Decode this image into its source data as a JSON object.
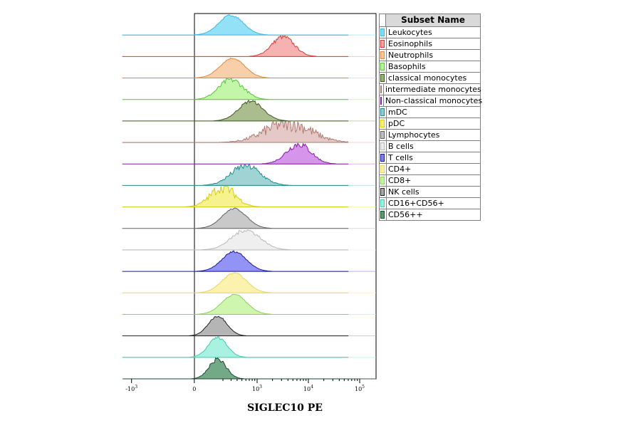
{
  "chart_data": {
    "type": "area",
    "xlabel": "SIGLEC10 PE",
    "x_scale": "logicle",
    "x_ticks": [
      {
        "label_base": "-10",
        "label_exp": "3",
        "value": -1000
      },
      {
        "label_base": "0",
        "label_exp": "",
        "value": 0
      },
      {
        "label_base": "10",
        "label_exp": "3",
        "value": 1000
      },
      {
        "label_base": "10",
        "label_exp": "4",
        "value": 10000
      },
      {
        "label_base": "10",
        "label_exp": "5",
        "value": 100000
      }
    ],
    "legend": {
      "title": "Subset Name",
      "placement": "right"
    },
    "series": [
      {
        "name": "Leukocytes",
        "fill": "#7fdcf5",
        "stroke": "#3cb8e0",
        "mode": 300,
        "spread": 0.55,
        "noise": 0.05
      },
      {
        "name": "Eosinophils",
        "fill": "#f5a3a3",
        "stroke": "#d43a3a",
        "mode": 3200,
        "spread": 0.5,
        "noise": 0.12
      },
      {
        "name": "Neutrophils",
        "fill": "#f7c79a",
        "stroke": "#e08a3c",
        "mode": 320,
        "spread": 0.55,
        "noise": 0.04
      },
      {
        "name": "Basophils",
        "fill": "#b8f59a",
        "stroke": "#55c435",
        "mode": 300,
        "spread": 0.55,
        "noise": 0.15
      },
      {
        "name": "classical monocytes",
        "fill": "#9cb07a",
        "stroke": "#3c5a20",
        "mode": 750,
        "spread": 0.55,
        "noise": 0.08
      },
      {
        "name": "intermediate monocytes",
        "fill": "#dfc0bc",
        "stroke": "#b07a72",
        "mode": 4000,
        "spread": 1.0,
        "noise": 0.45
      },
      {
        "name": "Non-classical monocytes",
        "fill": "#cf82e6",
        "stroke": "#8a1aaa",
        "mode": 6500,
        "spread": 0.55,
        "noise": 0.18
      },
      {
        "name": "mDC",
        "fill": "#8fcccc",
        "stroke": "#1c8c8c",
        "mode": 600,
        "spread": 0.65,
        "noise": 0.2
      },
      {
        "name": "pDC",
        "fill": "#f5f07a",
        "stroke": "#d4cc10",
        "mode": 200,
        "spread": 0.55,
        "noise": 0.3
      },
      {
        "name": "Lymphocytes",
        "fill": "#bfbfbf",
        "stroke": "#606060",
        "mode": 350,
        "spread": 0.55,
        "noise": 0.04
      },
      {
        "name": "B cells",
        "fill": "#ececec",
        "stroke": "#b8b8b8",
        "mode": 600,
        "spread": 0.65,
        "noise": 0.1
      },
      {
        "name": "T cells",
        "fill": "#8080f5",
        "stroke": "#1a1a90",
        "mode": 350,
        "spread": 0.55,
        "noise": 0.05
      },
      {
        "name": "CD4+",
        "fill": "#faf0a0",
        "stroke": "#e6d560",
        "mode": 350,
        "spread": 0.55,
        "noise": 0.04
      },
      {
        "name": "CD8+",
        "fill": "#c6f5a0",
        "stroke": "#8ccf5a",
        "mode": 350,
        "spread": 0.55,
        "noise": 0.04
      },
      {
        "name": "NK cells",
        "fill": "#a8a8a8",
        "stroke": "#202020",
        "mode": 150,
        "spread": 0.42,
        "noise": 0.05
      },
      {
        "name": "CD16+CD56+",
        "fill": "#9af0dc",
        "stroke": "#45c8aa",
        "mode": 150,
        "spread": 0.42,
        "noise": 0.06
      },
      {
        "name": "CD56++",
        "fill": "#5a9a72",
        "stroke": "#1a4a2a",
        "mode": 150,
        "spread": 0.38,
        "noise": 0.12
      }
    ]
  }
}
